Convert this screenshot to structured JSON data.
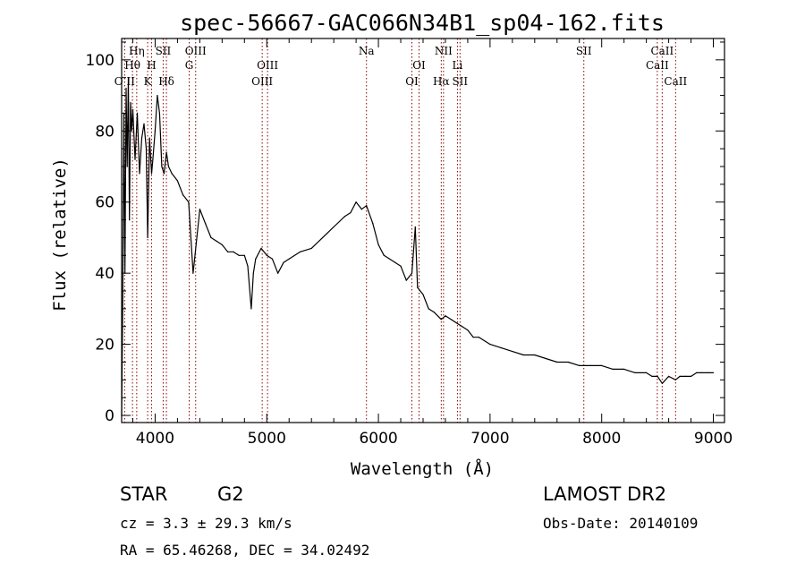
{
  "title": "spec-56667-GAC066N34B1_sp04-162.fits",
  "info": {
    "class": "STAR",
    "subclass": "G2",
    "survey": "LAMOST DR2",
    "redshift": "cz = 3.3 ± 29.3 km/s",
    "obs_date": "Obs-Date: 20140109",
    "coords": "RA =  65.46268, DEC =  34.02492"
  },
  "chart_data": {
    "type": "line",
    "title": "spec-56667-GAC066N34B1_sp04-162.fits",
    "xlabel": "Wavelength (Å)",
    "ylabel": "Flux (relative)",
    "xlim": [
      3700,
      9100
    ],
    "ylim": [
      -2,
      106
    ],
    "x_ticks": [
      4000,
      5000,
      6000,
      7000,
      8000,
      9000
    ],
    "x_tick_labels": [
      "4000",
      "5000",
      "6000",
      "7000",
      "8000",
      "9000"
    ],
    "y_ticks": [
      0,
      20,
      40,
      60,
      80,
      100
    ],
    "y_tick_labels": [
      "0",
      "20",
      "40",
      "60",
      "80",
      "100"
    ],
    "line_color": "#000000",
    "marker_color": "#8b0000",
    "series": [
      {
        "x": [
          3700,
          3710,
          3720,
          3730,
          3740,
          3750,
          3760,
          3770,
          3780,
          3790,
          3800,
          3820,
          3840,
          3860,
          3880,
          3900,
          3920,
          3933,
          3950,
          3968,
          3980,
          4000,
          4020,
          4040,
          4060,
          4080,
          4101,
          4120,
          4150,
          4200,
          4250,
          4300,
          4340,
          4400,
          4450,
          4500,
          4550,
          4600,
          4650,
          4700,
          4750,
          4800,
          4830,
          4861,
          4880,
          4900,
          4950,
          5000,
          5050,
          5100,
          5150,
          5200,
          5300,
          5400,
          5500,
          5600,
          5700,
          5750,
          5800,
          5850,
          5893,
          5950,
          6000,
          6050,
          6100,
          6150,
          6200,
          6250,
          6300,
          6330,
          6350,
          6400,
          6450,
          6500,
          6563,
          6600,
          6650,
          6700,
          6750,
          6800,
          6850,
          6900,
          7000,
          7100,
          7200,
          7300,
          7400,
          7500,
          7600,
          7700,
          7800,
          7900,
          8000,
          8100,
          8200,
          8300,
          8400,
          8450,
          8500,
          8542,
          8600,
          8662,
          8700,
          8750,
          8800,
          8850,
          8900,
          8950,
          9000
        ],
        "y": [
          0,
          32,
          85,
          40,
          92,
          70,
          95,
          55,
          88,
          80,
          86,
          72,
          85,
          68,
          78,
          82,
          75,
          50,
          78,
          68,
          72,
          80,
          90,
          85,
          70,
          68,
          74,
          70,
          68,
          66,
          62,
          60,
          40,
          58,
          54,
          50,
          49,
          48,
          46,
          46,
          45,
          45,
          42,
          30,
          40,
          44,
          47,
          45,
          44,
          40,
          43,
          44,
          46,
          47,
          50,
          53,
          56,
          57,
          60,
          58,
          59,
          54,
          48,
          45,
          44,
          43,
          42,
          38,
          40,
          53,
          36,
          34,
          30,
          29,
          27,
          28,
          27,
          26,
          25,
          24,
          22,
          22,
          20,
          19,
          18,
          17,
          17,
          16,
          15,
          15,
          14,
          14,
          14,
          13,
          13,
          12,
          12,
          11,
          11,
          9,
          11,
          10,
          11,
          11,
          11,
          12,
          12,
          12,
          12
        ]
      }
    ],
    "spectral_lines": [
      {
        "label": "O II",
        "x": 3727,
        "row": 3
      },
      {
        "label": "Hη",
        "x": 3835,
        "row": 1
      },
      {
        "label": "Hθ",
        "x": 3797,
        "row": 2
      },
      {
        "label": "K",
        "x": 3933,
        "row": 3
      },
      {
        "label": "H",
        "x": 3968,
        "row": 2
      },
      {
        "label": "SII",
        "x": 4072,
        "row": 1
      },
      {
        "label": "Hδ",
        "x": 4101,
        "row": 3
      },
      {
        "label": "OIII",
        "x": 4363,
        "row": 1
      },
      {
        "label": "G",
        "x": 4305,
        "row": 2
      },
      {
        "label": "OIII",
        "x": 5007,
        "row": 2
      },
      {
        "label": "OIII",
        "x": 4959,
        "row": 3
      },
      {
        "label": "Na",
        "x": 5893,
        "row": 1
      },
      {
        "label": "OI",
        "x": 6364,
        "row": 2
      },
      {
        "label": "OI",
        "x": 6300,
        "row": 3
      },
      {
        "label": "NII",
        "x": 6583,
        "row": 1
      },
      {
        "label": "Hα",
        "x": 6563,
        "row": 3
      },
      {
        "label": "Li",
        "x": 6708,
        "row": 2
      },
      {
        "label": "SII",
        "x": 6731,
        "row": 3
      },
      {
        "label": "SII",
        "x": 7840,
        "row": 1
      },
      {
        "label": "CaII",
        "x": 8542,
        "row": 1
      },
      {
        "label": "CaII",
        "x": 8498,
        "row": 2
      },
      {
        "label": "CaII",
        "x": 8662,
        "row": 3
      }
    ]
  }
}
